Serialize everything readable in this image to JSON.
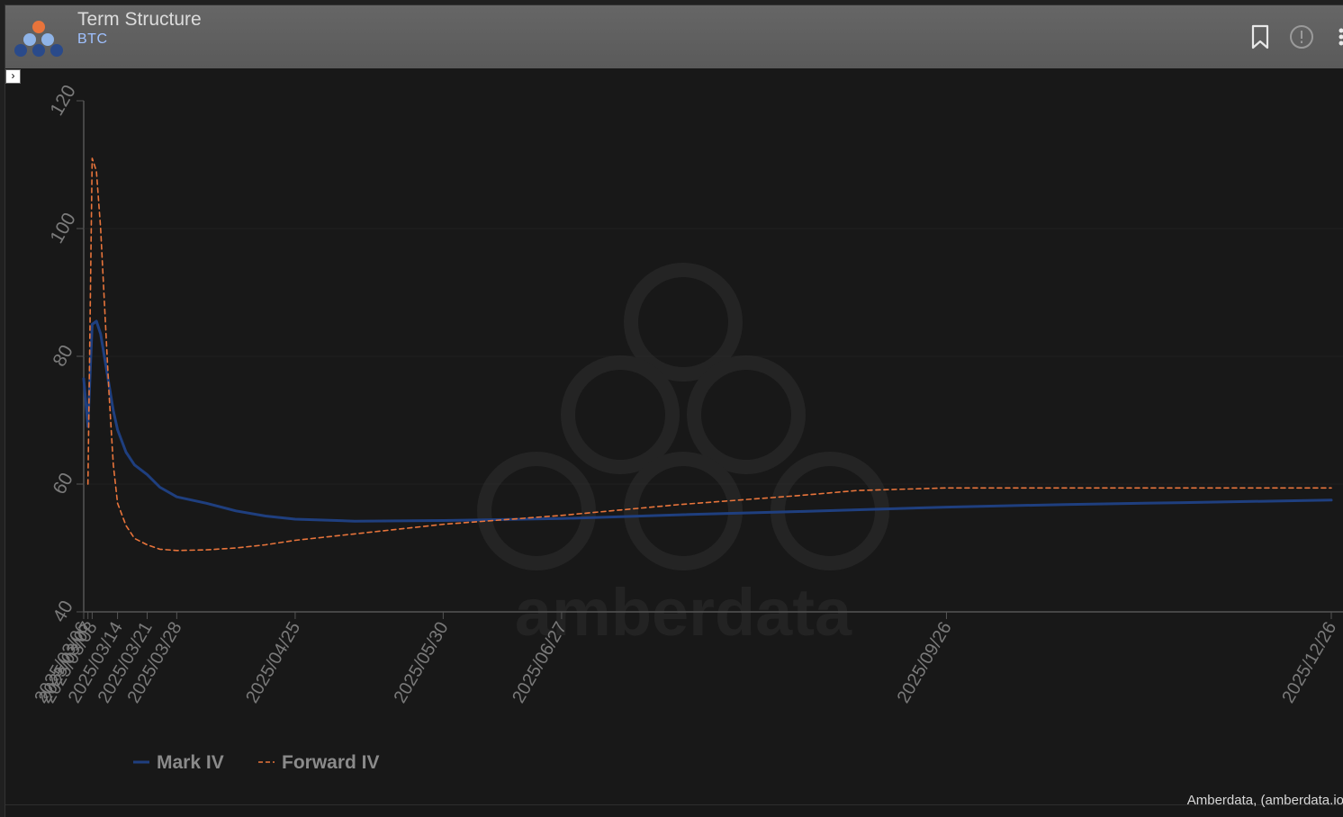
{
  "header": {
    "title": "Term Structure",
    "subtitle": "BTC",
    "icons": [
      "amberdata-logo-icon",
      "bookmark-icon",
      "info-circle-icon",
      "more-vertical-icon"
    ]
  },
  "watermark": {
    "text": "amberdata"
  },
  "credit": "Amberdata, (amberdata.io)",
  "colors": {
    "mark_iv": "#1f3f7f",
    "forward_iv": "#e8743b",
    "grid": "#2a2a2a",
    "axis_text": "#7a7a7a"
  },
  "chart_data": {
    "type": "line",
    "title": "",
    "xlabel": "",
    "ylabel": "",
    "ylim": [
      40,
      120
    ],
    "yticks": [
      40,
      60,
      80,
      100,
      120
    ],
    "xlim": [
      "2025-03-06",
      "2025-12-26"
    ],
    "xticks": [
      {
        "date": "2025-03-06",
        "label": "2025/03/06"
      },
      {
        "date": "2025-03-07",
        "label": "2025/03/07"
      },
      {
        "date": "2025-03-08",
        "label": "2025/03/08"
      },
      {
        "date": "2025-03-14",
        "label": "2025/03/14"
      },
      {
        "date": "2025-03-21",
        "label": "2025/03/21"
      },
      {
        "date": "2025-03-28",
        "label": "2025/03/28"
      },
      {
        "date": "2025-04-25",
        "label": "2025/04/25"
      },
      {
        "date": "2025-05-30",
        "label": "2025/05/30"
      },
      {
        "date": "2025-06-27",
        "label": "2025/06/27"
      },
      {
        "date": "2025-09-26",
        "label": "2025/09/26"
      },
      {
        "date": "2025-12-26",
        "label": "2025/12/26"
      }
    ],
    "grid": false,
    "legend": "bottom-left",
    "series": [
      {
        "name": "Mark IV",
        "style": "solid",
        "points": [
          [
            "2025-03-06",
            76.5
          ],
          [
            "2025-03-07",
            69.0
          ],
          [
            "2025-03-08",
            85.0
          ],
          [
            "2025-03-09",
            85.5
          ],
          [
            "2025-03-10",
            83.5
          ],
          [
            "2025-03-11",
            79.5
          ],
          [
            "2025-03-12",
            75.5
          ],
          [
            "2025-03-13",
            71.5
          ],
          [
            "2025-03-14",
            68.5
          ],
          [
            "2025-03-16",
            65.0
          ],
          [
            "2025-03-18",
            63.0
          ],
          [
            "2025-03-21",
            61.5
          ],
          [
            "2025-03-24",
            59.5
          ],
          [
            "2025-03-28",
            58.0
          ],
          [
            "2025-04-04",
            57.0
          ],
          [
            "2025-04-11",
            55.8
          ],
          [
            "2025-04-18",
            55.0
          ],
          [
            "2025-04-25",
            54.5
          ],
          [
            "2025-05-09",
            54.2
          ],
          [
            "2025-05-30",
            54.3
          ],
          [
            "2025-06-27",
            54.6
          ],
          [
            "2025-07-25",
            55.2
          ],
          [
            "2025-08-22",
            55.7
          ],
          [
            "2025-09-26",
            56.4
          ],
          [
            "2025-10-24",
            56.8
          ],
          [
            "2025-11-21",
            57.1
          ],
          [
            "2025-12-26",
            57.5
          ]
        ]
      },
      {
        "name": "Forward IV",
        "style": "dashed",
        "points": [
          [
            "2025-03-07",
            60.0
          ],
          [
            "2025-03-08",
            111.0
          ],
          [
            "2025-03-09",
            109.0
          ],
          [
            "2025-03-10",
            100.0
          ],
          [
            "2025-03-11",
            87.0
          ],
          [
            "2025-03-12",
            74.0
          ],
          [
            "2025-03-13",
            63.0
          ],
          [
            "2025-03-14",
            57.0
          ],
          [
            "2025-03-16",
            53.5
          ],
          [
            "2025-03-18",
            51.5
          ],
          [
            "2025-03-21",
            50.5
          ],
          [
            "2025-03-24",
            49.8
          ],
          [
            "2025-03-28",
            49.6
          ],
          [
            "2025-04-04",
            49.7
          ],
          [
            "2025-04-11",
            50.0
          ],
          [
            "2025-04-18",
            50.5
          ],
          [
            "2025-04-25",
            51.2
          ],
          [
            "2025-05-09",
            52.2
          ],
          [
            "2025-05-30",
            53.7
          ],
          [
            "2025-06-27",
            55.1
          ],
          [
            "2025-07-25",
            56.8
          ],
          [
            "2025-08-22",
            58.2
          ],
          [
            "2025-09-05",
            59.0
          ],
          [
            "2025-09-26",
            59.4
          ],
          [
            "2025-10-24",
            59.4
          ],
          [
            "2025-11-21",
            59.4
          ],
          [
            "2025-12-26",
            59.4
          ]
        ]
      }
    ]
  }
}
